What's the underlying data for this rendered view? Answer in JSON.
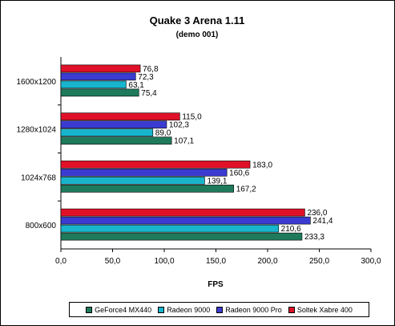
{
  "chart_data": {
    "type": "bar",
    "orientation": "horizontal",
    "title": "Quake 3 Arena 1.11",
    "subtitle": "(demo 001)",
    "xlabel": "FPS",
    "ylabel": "",
    "xlim": [
      0,
      300
    ],
    "x_ticks": [
      "0,0",
      "50,0",
      "100,0",
      "150,0",
      "200,0",
      "250,0",
      "300,0"
    ],
    "grid": false,
    "legend_position": "bottom",
    "categories": [
      "1600x1200",
      "1280x1024",
      "1024x768",
      "800x600"
    ],
    "series": [
      {
        "name": "GeForce4 MX440",
        "color": "#1f7a5c",
        "values": [
          75.4,
          107.1,
          167.2,
          233.3
        ],
        "labels": [
          "75,4",
          "107,1",
          "167,2",
          "233,3"
        ]
      },
      {
        "name": "Radeon 9000",
        "color": "#18b4cc",
        "values": [
          63.1,
          89.0,
          139.1,
          210.6
        ],
        "labels": [
          "63,1",
          "89,0",
          "139,1",
          "210,6"
        ]
      },
      {
        "name": "Radeon 9000 Pro",
        "color": "#3b3bd1",
        "values": [
          72.3,
          102.3,
          160.6,
          241.4
        ],
        "labels": [
          "72,3",
          "102,3",
          "160,6",
          "241,4"
        ]
      },
      {
        "name": "Soltek Xabre 400",
        "color": "#e01028",
        "values": [
          76.8,
          115.0,
          183.0,
          236.0
        ],
        "labels": [
          "76,8",
          "115,0",
          "183,0",
          "236,0"
        ]
      }
    ]
  }
}
